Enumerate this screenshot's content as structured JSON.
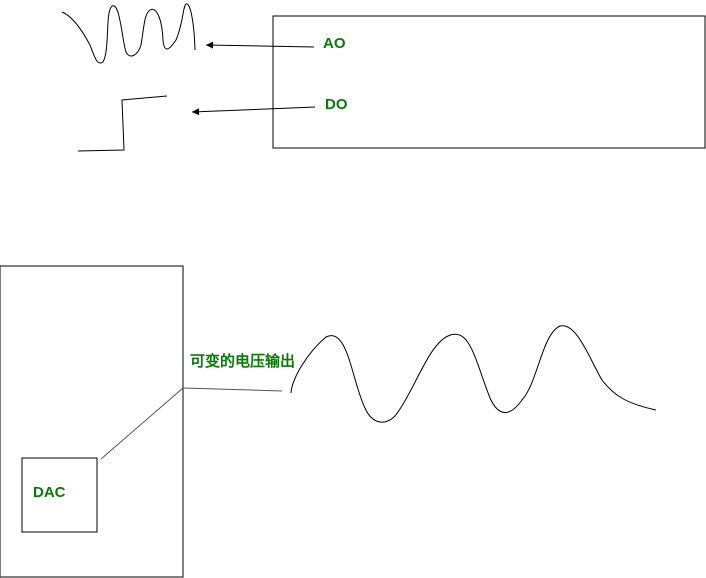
{
  "labels": {
    "ao": "AO",
    "do": "DO",
    "dac": "DAC",
    "variable_voltage": "可变的电压输出"
  },
  "colors": {
    "label_green": "#0a7a0a",
    "stroke": "#000000",
    "connector": "#555555"
  }
}
